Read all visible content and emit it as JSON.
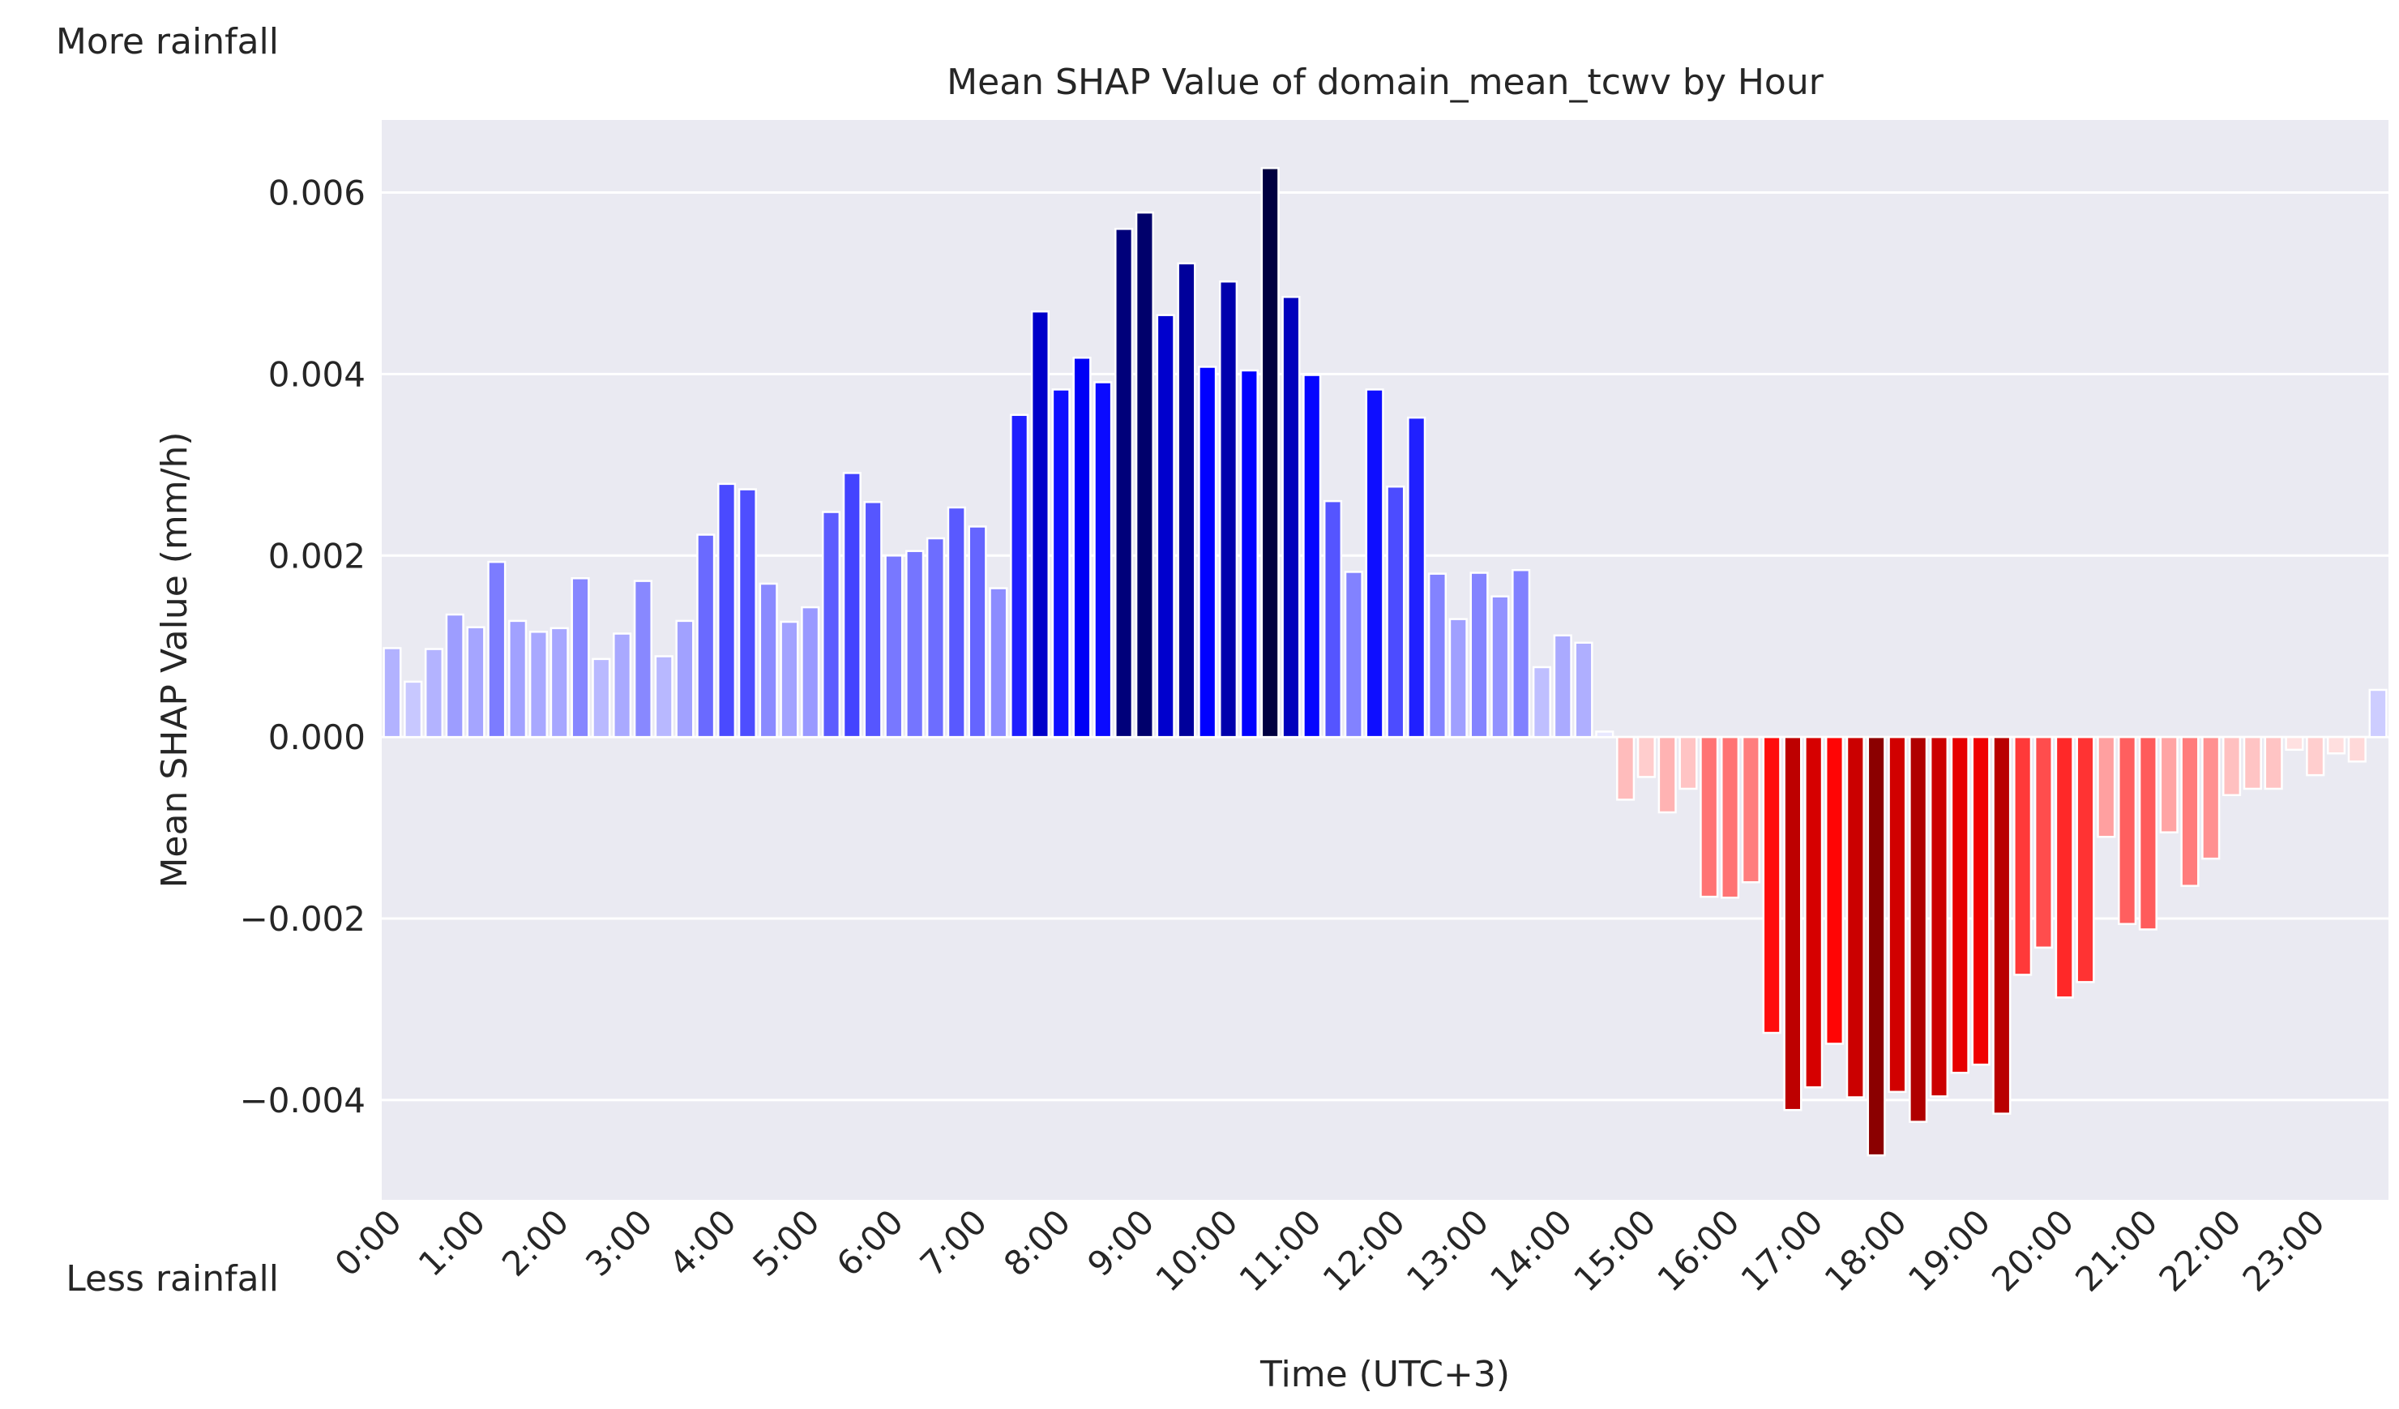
{
  "chart_data": {
    "type": "bar",
    "title": "Mean SHAP Value of domain_mean_tcwv by Hour",
    "xlabel": "Time (UTC+3)",
    "ylabel": "Mean SHAP Value (mm/h)",
    "annotations": {
      "top": "More rainfall",
      "bottom": "Less rainfall"
    },
    "ylim": [
      -0.0051,
      0.0068
    ],
    "yticks": [
      -0.004,
      -0.002,
      0.0,
      0.002,
      0.004,
      0.006
    ],
    "ytick_labels": [
      "−0.004",
      "−0.002",
      "0.000",
      "0.002",
      "0.004",
      "0.006"
    ],
    "xtick_labels": [
      "0:00",
      "1:00",
      "2:00",
      "3:00",
      "4:00",
      "5:00",
      "6:00",
      "7:00",
      "8:00",
      "9:00",
      "10:00",
      "11:00",
      "12:00",
      "13:00",
      "14:00",
      "15:00",
      "16:00",
      "17:00",
      "18:00",
      "19:00",
      "20:00",
      "21:00",
      "22:00",
      "23:00"
    ],
    "bars_per_tick": 4,
    "grid": true,
    "colors": {
      "positive": "#0000ff",
      "positive_dark": "#000040",
      "negative": "#ff0000",
      "negative_dark": "#8b0000",
      "background": "#eaeaf2"
    },
    "values": [
      0.00098,
      0.00061,
      0.00097,
      0.00135,
      0.00121,
      0.00193,
      0.00128,
      0.00116,
      0.0012,
      0.00175,
      0.00086,
      0.00114,
      0.00172,
      0.00089,
      0.00128,
      0.00223,
      0.00279,
      0.00273,
      0.00169,
      0.00127,
      0.00143,
      0.00248,
      0.00291,
      0.00259,
      0.002,
      0.00205,
      0.00219,
      0.00253,
      0.00232,
      0.00164,
      0.00355,
      0.00469,
      0.00383,
      0.00418,
      0.00391,
      0.0056,
      0.00578,
      0.00465,
      0.00522,
      0.00408,
      0.00502,
      0.00404,
      0.00627,
      0.00485,
      0.00399,
      0.0026,
      0.00182,
      0.00383,
      0.00276,
      0.00352,
      0.0018,
      0.0013,
      0.00181,
      0.00155,
      0.00184,
      0.00077,
      0.00112,
      0.00104,
      6e-05,
      -0.00069,
      -0.00044,
      -0.00083,
      -0.00057,
      -0.00176,
      -0.00177,
      -0.0016,
      -0.00326,
      -0.00411,
      -0.00386,
      -0.00338,
      -0.00397,
      -0.00461,
      -0.00391,
      -0.00424,
      -0.00396,
      -0.0037,
      -0.00361,
      -0.00415,
      -0.00262,
      -0.00232,
      -0.00287,
      -0.0027,
      -0.0011,
      -0.00206,
      -0.00212,
      -0.00105,
      -0.00164,
      -0.00134,
      -0.00064,
      -0.00057,
      -0.00057,
      -0.00014,
      -0.00042,
      -0.00018,
      -0.00027,
      0.00052
    ]
  }
}
